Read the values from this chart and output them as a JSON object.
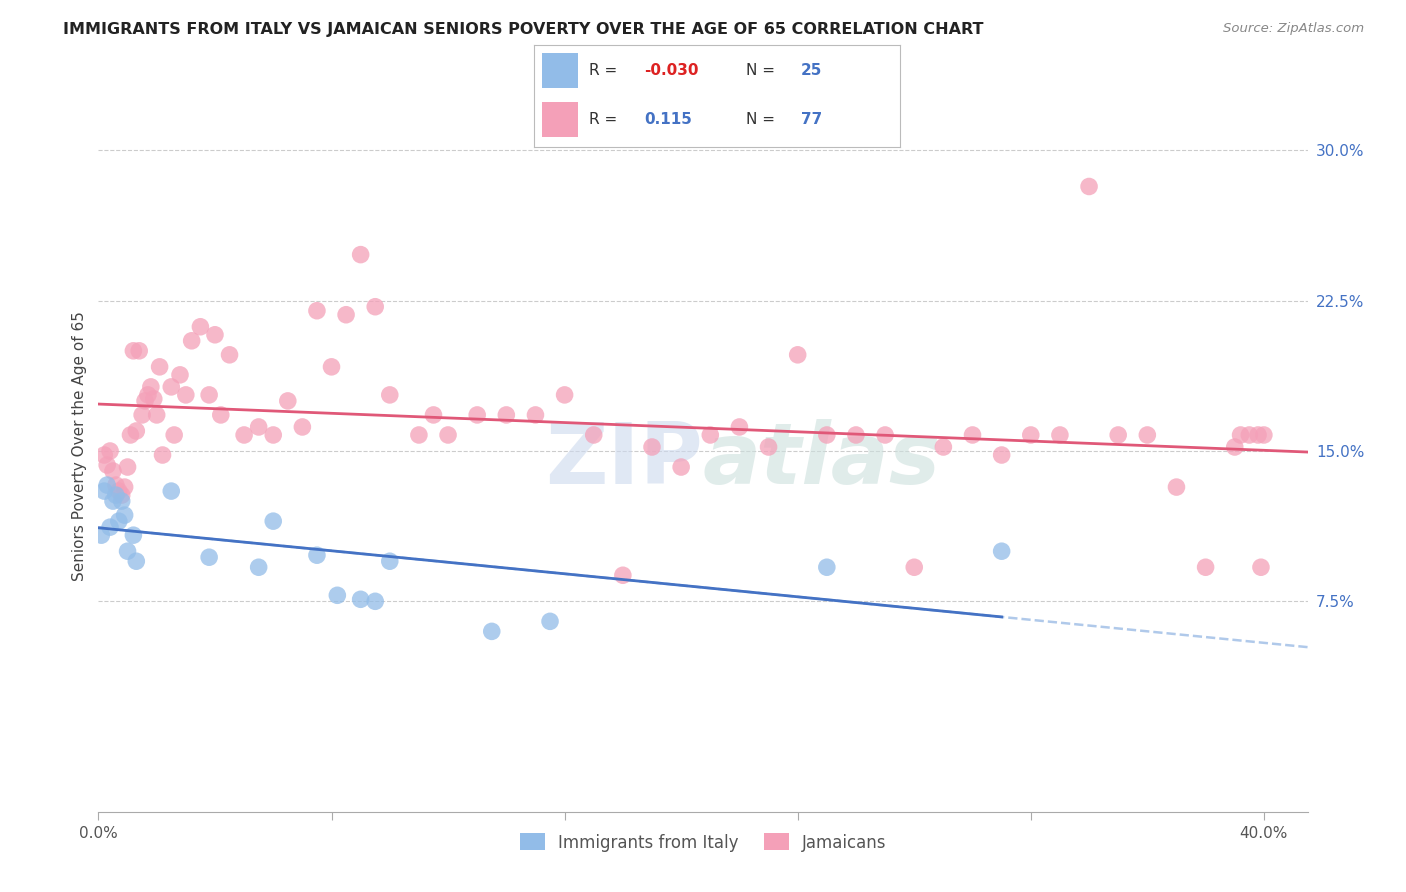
{
  "title": "IMMIGRANTS FROM ITALY VS JAMAICAN SENIORS POVERTY OVER THE AGE OF 65 CORRELATION CHART",
  "source": "Source: ZipAtlas.com",
  "ylabel": "Seniors Poverty Over the Age of 65",
  "xlabel_italy": "Immigrants from Italy",
  "xlabel_jamaicans": "Jamaicans",
  "r_italy": -0.03,
  "n_italy": 25,
  "r_jamaicans": 0.115,
  "n_jamaicans": 77,
  "color_italy": "#92bce8",
  "color_jamaicans": "#f4a0b8",
  "line_color_italy": "#4472c4",
  "line_color_jamaicans": "#e05878",
  "line_color_italy_dash": "#a8c4e8",
  "italy_x": [
    0.001,
    0.002,
    0.003,
    0.004,
    0.005,
    0.006,
    0.007,
    0.008,
    0.009,
    0.01,
    0.012,
    0.013,
    0.025,
    0.038,
    0.055,
    0.06,
    0.075,
    0.082,
    0.09,
    0.095,
    0.1,
    0.135,
    0.155,
    0.25,
    0.31
  ],
  "italy_y": [
    0.108,
    0.13,
    0.133,
    0.112,
    0.125,
    0.128,
    0.115,
    0.125,
    0.118,
    0.1,
    0.108,
    0.095,
    0.13,
    0.097,
    0.092,
    0.115,
    0.098,
    0.078,
    0.076,
    0.075,
    0.095,
    0.06,
    0.065,
    0.092,
    0.1
  ],
  "jam_x": [
    0.002,
    0.003,
    0.004,
    0.005,
    0.006,
    0.007,
    0.008,
    0.009,
    0.01,
    0.011,
    0.012,
    0.013,
    0.014,
    0.015,
    0.016,
    0.017,
    0.018,
    0.019,
    0.02,
    0.021,
    0.022,
    0.025,
    0.026,
    0.028,
    0.03,
    0.032,
    0.035,
    0.038,
    0.04,
    0.042,
    0.045,
    0.05,
    0.055,
    0.06,
    0.065,
    0.07,
    0.075,
    0.08,
    0.085,
    0.09,
    0.095,
    0.1,
    0.11,
    0.115,
    0.12,
    0.13,
    0.14,
    0.15,
    0.16,
    0.17,
    0.18,
    0.19,
    0.2,
    0.21,
    0.22,
    0.23,
    0.24,
    0.25,
    0.26,
    0.27,
    0.28,
    0.29,
    0.3,
    0.31,
    0.32,
    0.33,
    0.34,
    0.35,
    0.36,
    0.37,
    0.38,
    0.39,
    0.392,
    0.395,
    0.398,
    0.399,
    0.4
  ],
  "jam_y": [
    0.148,
    0.143,
    0.15,
    0.14,
    0.133,
    0.13,
    0.128,
    0.132,
    0.142,
    0.158,
    0.2,
    0.16,
    0.2,
    0.168,
    0.175,
    0.178,
    0.182,
    0.176,
    0.168,
    0.192,
    0.148,
    0.182,
    0.158,
    0.188,
    0.178,
    0.205,
    0.212,
    0.178,
    0.208,
    0.168,
    0.198,
    0.158,
    0.162,
    0.158,
    0.175,
    0.162,
    0.22,
    0.192,
    0.218,
    0.248,
    0.222,
    0.178,
    0.158,
    0.168,
    0.158,
    0.168,
    0.168,
    0.168,
    0.178,
    0.158,
    0.088,
    0.152,
    0.142,
    0.158,
    0.162,
    0.152,
    0.198,
    0.158,
    0.158,
    0.158,
    0.092,
    0.152,
    0.158,
    0.148,
    0.158,
    0.158,
    0.282,
    0.158,
    0.158,
    0.132,
    0.092,
    0.152,
    0.158,
    0.158,
    0.158,
    0.092,
    0.158
  ],
  "xlim": [
    0.0,
    0.415
  ],
  "ylim": [
    -0.03,
    0.335
  ],
  "yticks": [
    0.075,
    0.15,
    0.225,
    0.3
  ],
  "ytick_labels": [
    "7.5%",
    "15.0%",
    "22.5%",
    "30.0%"
  ],
  "xtick_vals": [
    0.0,
    0.08,
    0.16,
    0.24,
    0.32,
    0.4
  ],
  "xtick_labels": [
    "0.0%",
    "",
    "",
    "",
    "",
    "40.0%"
  ]
}
